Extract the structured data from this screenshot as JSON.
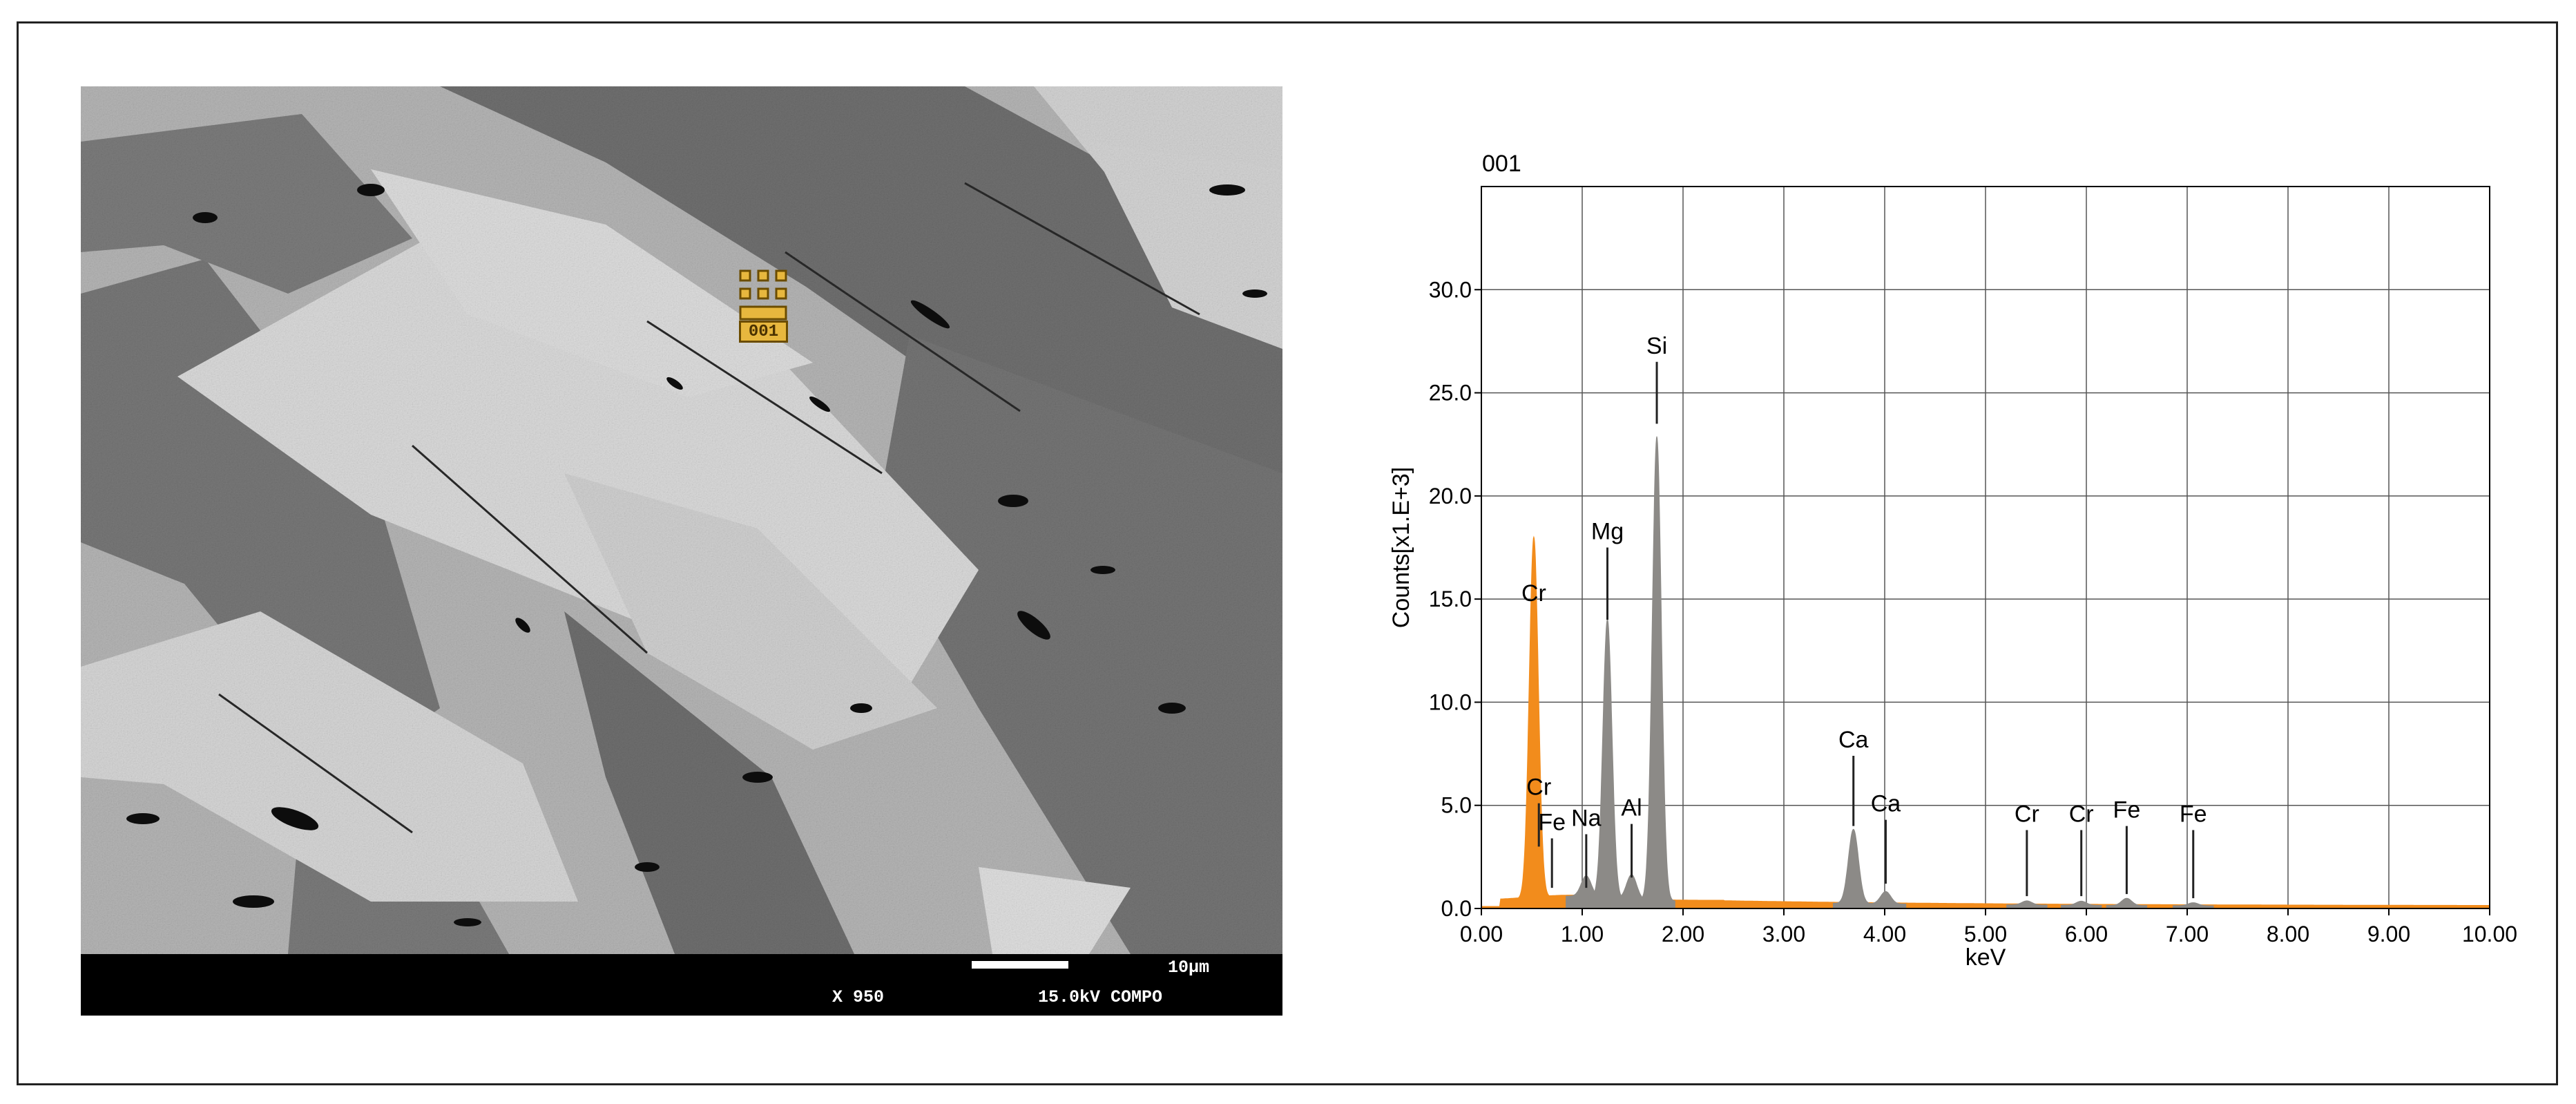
{
  "sem_image": {
    "scale_label": "10μm",
    "magnification": "X 950",
    "conditions": "15.0kV COMPO",
    "spot_label": "001"
  },
  "chart_data": {
    "type": "line",
    "title": "001",
    "xlabel": "keV",
    "ylabel": "Counts[x1.E+3]",
    "xlim": [
      0,
      10
    ],
    "ylim": [
      0,
      35
    ],
    "grid": true,
    "x_ticks": [
      "0.00",
      "1.00",
      "2.00",
      "3.00",
      "4.00",
      "5.00",
      "6.00",
      "7.00",
      "8.00",
      "9.00",
      "10.00"
    ],
    "y_ticks": [
      "0.0",
      "5.0",
      "10.0",
      "15.0",
      "20.0",
      "25.0",
      "30.0"
    ],
    "colors": {
      "background_spectrum": "#f28c1c",
      "peaks": "#8c8a87"
    },
    "peaks": [
      {
        "x": 0.52,
        "height": 17.5,
        "color": "orange"
      },
      {
        "x": 1.04,
        "height": 1.0,
        "color": "gray"
      },
      {
        "x": 1.25,
        "height": 13.5,
        "color": "gray"
      },
      {
        "x": 1.49,
        "height": 1.2,
        "color": "gray"
      },
      {
        "x": 1.74,
        "height": 22.5,
        "color": "gray"
      },
      {
        "x": 3.69,
        "height": 3.6,
        "color": "gray"
      },
      {
        "x": 4.01,
        "height": 0.6,
        "color": "gray"
      },
      {
        "x": 5.41,
        "height": 0.2,
        "color": "gray"
      },
      {
        "x": 5.95,
        "height": 0.2,
        "color": "gray"
      },
      {
        "x": 6.4,
        "height": 0.35,
        "color": "gray"
      },
      {
        "x": 7.06,
        "height": 0.15,
        "color": "gray"
      }
    ],
    "element_markers": [
      {
        "label": "Cr",
        "x": 0.52,
        "line_top": 14.5,
        "line_bottom": 14.5
      },
      {
        "label": "Cr",
        "x": 0.57,
        "line_top": 5.1,
        "line_bottom": 3.0
      },
      {
        "label": "Fe",
        "x": 0.7,
        "line_top": 3.4,
        "line_bottom": 1.0
      },
      {
        "label": "Na",
        "x": 1.04,
        "line_top": 3.6,
        "line_bottom": 1.0
      },
      {
        "label": "Mg",
        "x": 1.25,
        "line_top": 17.5,
        "line_bottom": 14.0
      },
      {
        "label": "Al",
        "x": 1.49,
        "line_top": 4.1,
        "line_bottom": 1.5
      },
      {
        "label": "Si",
        "x": 1.74,
        "line_top": 26.5,
        "line_bottom": 23.5
      },
      {
        "label": "Ca",
        "x": 3.69,
        "line_top": 7.4,
        "line_bottom": 4.0
      },
      {
        "label": "Ca",
        "x": 4.01,
        "line_top": 4.3,
        "line_bottom": 1.2
      },
      {
        "label": "Cr",
        "x": 5.41,
        "line_top": 3.8,
        "line_bottom": 0.6
      },
      {
        "label": "Cr",
        "x": 5.95,
        "line_top": 3.8,
        "line_bottom": 0.6
      },
      {
        "label": "Fe",
        "x": 6.4,
        "line_top": 4.0,
        "line_bottom": 0.7
      },
      {
        "label": "Fe",
        "x": 7.06,
        "line_top": 3.8,
        "line_bottom": 0.5
      }
    ]
  }
}
